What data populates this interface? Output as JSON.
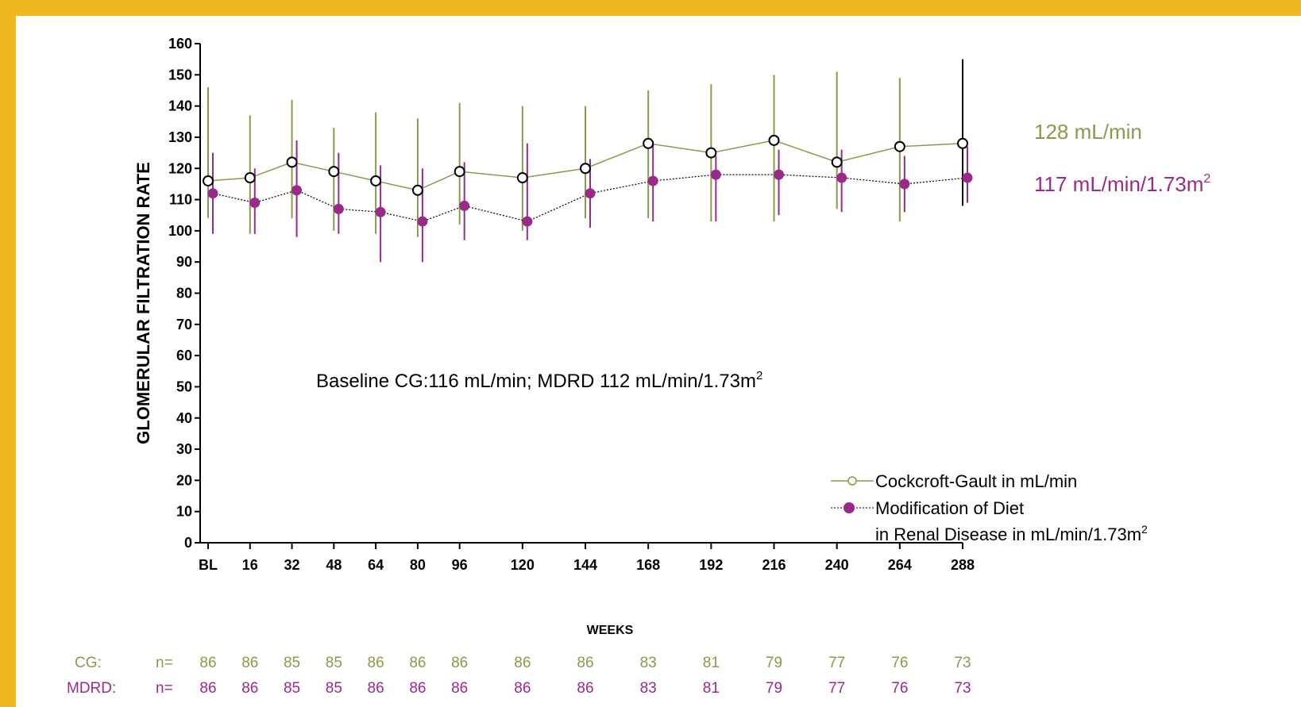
{
  "colors": {
    "frame": "#f0b71e",
    "cg": "#8a9a4a",
    "mdrd": "#9a2a8a",
    "axis": "#000000"
  },
  "chart_data": {
    "type": "line",
    "title": "",
    "xlabel": "WEEKS",
    "ylabel": "GLOMERULAR FILTRATION  RATE",
    "ylim": [
      0,
      160
    ],
    "yticks": [
      0,
      10,
      20,
      30,
      40,
      50,
      60,
      70,
      80,
      90,
      100,
      110,
      120,
      130,
      140,
      150,
      160
    ],
    "categories": [
      "BL",
      "16",
      "32",
      "48",
      "64",
      "80",
      "96",
      "120",
      "144",
      "168",
      "192",
      "216",
      "240",
      "264",
      "288"
    ],
    "x": [
      0,
      16,
      32,
      48,
      64,
      80,
      96,
      120,
      144,
      168,
      192,
      216,
      240,
      264,
      288
    ],
    "series": [
      {
        "name": "Cockcroft-Gault in mL/min",
        "marker": "open-circle",
        "line": "solid",
        "values": [
          116,
          117,
          122,
          119,
          116,
          113,
          119,
          117,
          120,
          128,
          125,
          129,
          122,
          127,
          128
        ],
        "err_low": [
          104,
          99,
          104,
          100,
          99,
          98,
          102,
          100,
          104,
          104,
          103,
          103,
          107,
          103,
          108
        ],
        "err_high": [
          146,
          137,
          142,
          133,
          138,
          136,
          141,
          140,
          140,
          145,
          147,
          150,
          151,
          149,
          155
        ]
      },
      {
        "name": "Modification of Diet in Renal Disease in mL/min/1.73m²",
        "marker": "filled-circle",
        "line": "dotted",
        "values": [
          112,
          109,
          113,
          107,
          106,
          103,
          108,
          103,
          112,
          116,
          118,
          118,
          117,
          115,
          117
        ],
        "err_low": [
          99,
          99,
          98,
          99,
          90,
          90,
          97,
          97,
          101,
          103,
          103,
          105,
          106,
          106,
          109
        ],
        "err_high": [
          125,
          120,
          129,
          125,
          121,
          120,
          122,
          128,
          123,
          128,
          124,
          126,
          126,
          124,
          127
        ]
      }
    ],
    "annotation_baseline": "Baseline CG:116 mL/min; MDRD 112 mL/min/1.73m",
    "annotation_baseline_sup": "2",
    "end_label_cg": "128 mL/min",
    "end_label_mdrd": "117 mL/min/1.73m",
    "end_label_mdrd_sup": "2",
    "legend": {
      "placement": "bottom-right",
      "cg": "Cockcroft-Gault in mL/min",
      "mdrd_line1": "Modification of Diet",
      "mdrd_line2": "in Renal Disease in mL/min/1.73m",
      "mdrd_sup": "2"
    },
    "n_table": {
      "cg_label": "CG:",
      "mdrd_label": "MDRD:",
      "n_label": "n=",
      "cg": [
        "86",
        "86",
        "85",
        "85",
        "86",
        "86",
        "86",
        "86",
        "86",
        "83",
        "81",
        "79",
        "77",
        "76",
        "73"
      ],
      "mdrd": [
        "86",
        "86",
        "85",
        "85",
        "86",
        "86",
        "86",
        "86",
        "86",
        "83",
        "81",
        "79",
        "77",
        "76",
        "73"
      ]
    }
  }
}
